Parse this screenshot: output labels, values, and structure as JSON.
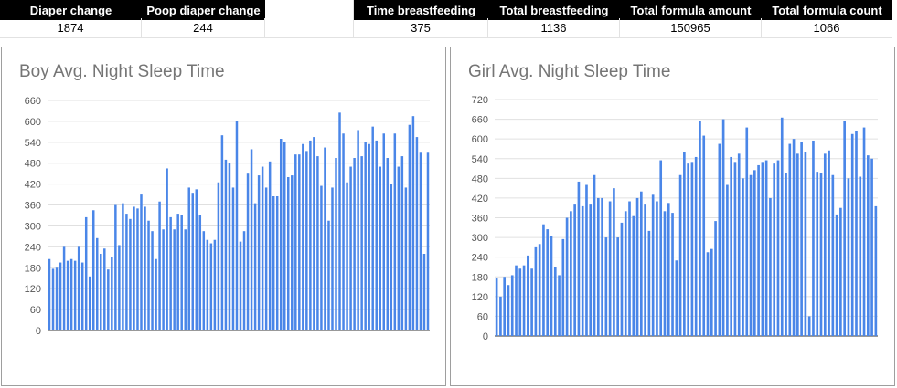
{
  "sheet": {
    "headers": [
      "Diaper change",
      "Poop diaper change",
      "",
      "",
      "Time breastfeeding",
      "Total breastfeeding",
      "Total formula amount",
      "Total formula count"
    ],
    "values": [
      "1874",
      "244",
      "",
      "",
      "375",
      "1136",
      "150965",
      "1066"
    ]
  },
  "bar_color": "#4a86e8",
  "chart_data": [
    {
      "type": "bar",
      "title": "Boy Avg. Night Sleep Time",
      "xlabel": "",
      "ylabel": "",
      "ylim": [
        0,
        660
      ],
      "yticks": [
        0,
        60,
        120,
        180,
        240,
        300,
        360,
        420,
        480,
        540,
        600,
        660
      ],
      "values": [
        205,
        177,
        180,
        195,
        240,
        200,
        205,
        200,
        240,
        195,
        325,
        155,
        345,
        265,
        220,
        235,
        175,
        210,
        360,
        245,
        365,
        335,
        320,
        355,
        350,
        390,
        355,
        315,
        285,
        205,
        370,
        290,
        465,
        325,
        290,
        335,
        330,
        290,
        410,
        395,
        405,
        330,
        285,
        260,
        250,
        260,
        425,
        560,
        490,
        480,
        410,
        600,
        255,
        285,
        450,
        520,
        365,
        445,
        470,
        410,
        485,
        385,
        385,
        550,
        540,
        440,
        445,
        505,
        505,
        535,
        515,
        545,
        555,
        500,
        415,
        525,
        315,
        410,
        495,
        625,
        565,
        425,
        470,
        495,
        575,
        500,
        540,
        535,
        585,
        545,
        470,
        565,
        495,
        420,
        565,
        470,
        500,
        410,
        590,
        615,
        555,
        510,
        220,
        510
      ]
    },
    {
      "type": "bar",
      "title": "Girl Avg. Night Sleep Time",
      "xlabel": "",
      "ylabel": "",
      "ylim": [
        0,
        720
      ],
      "yticks": [
        0,
        60,
        120,
        180,
        240,
        300,
        360,
        420,
        480,
        540,
        600,
        660,
        720
      ],
      "values": [
        175,
        120,
        180,
        155,
        185,
        215,
        205,
        215,
        245,
        205,
        270,
        280,
        340,
        325,
        305,
        210,
        185,
        295,
        360,
        380,
        400,
        470,
        395,
        460,
        400,
        490,
        420,
        420,
        300,
        410,
        450,
        300,
        345,
        380,
        410,
        365,
        420,
        440,
        400,
        320,
        430,
        410,
        535,
        380,
        405,
        375,
        230,
        490,
        560,
        525,
        530,
        545,
        655,
        610,
        255,
        265,
        350,
        585,
        660,
        460,
        545,
        530,
        555,
        480,
        635,
        490,
        505,
        520,
        530,
        535,
        420,
        525,
        535,
        665,
        495,
        585,
        600,
        555,
        590,
        560,
        60,
        595,
        500,
        495,
        555,
        565,
        490,
        370,
        390,
        655,
        480,
        615,
        625,
        485,
        635,
        550,
        540,
        395
      ]
    }
  ]
}
